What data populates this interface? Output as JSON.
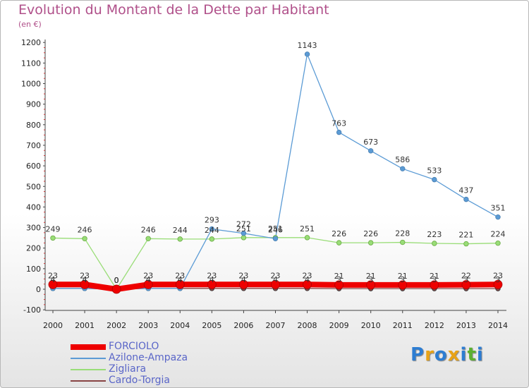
{
  "title": "Evolution du Montant de la Dette par Habitant",
  "subtitle": "(en €)",
  "logo": {
    "letters": [
      "P",
      "r",
      "o",
      "x",
      "i",
      "t",
      "i"
    ],
    "colors": [
      "#2d7dd2",
      "#e8a317",
      "#2d7dd2",
      "#e8a317",
      "#2d7dd2",
      "#5cb030",
      "#2d7dd2"
    ]
  },
  "chart_data": {
    "type": "line",
    "title": "Evolution du Montant de la Dette par Habitant",
    "ylabel": "(en €)",
    "xlabel": "",
    "categories": [
      "2000",
      "2001",
      "2002",
      "2003",
      "2004",
      "2005",
      "2006",
      "2007",
      "2008",
      "2009",
      "2010",
      "2011",
      "2012",
      "2013",
      "2014"
    ],
    "ylim": [
      -100,
      1200
    ],
    "yticks": [
      "-100",
      "0",
      "100",
      "200",
      "300",
      "400",
      "500",
      "600",
      "700",
      "800",
      "900",
      "1000",
      "1100",
      "1200"
    ],
    "grid": false,
    "legend_position": "bottom-left",
    "series": [
      {
        "name": "FORCIOLO",
        "color": "#ee0000",
        "values": [
          23,
          23,
          0,
          23,
          23,
          23,
          23,
          23,
          23,
          21,
          21,
          21,
          21,
          22,
          23
        ],
        "labels": [
          "23",
          "23",
          "0",
          "23",
          "23",
          "23",
          "23",
          "23",
          "23",
          "21",
          "21",
          "21",
          "21",
          "22",
          "23"
        ]
      },
      {
        "name": "Azilone-Ampaza",
        "color": "#5b9bd5",
        "values": [
          4,
          4,
          0,
          4,
          4,
          293,
          272,
          246,
          1143,
          763,
          673,
          586,
          533,
          437,
          351
        ],
        "labels": [
          "4",
          "4",
          "0",
          "4",
          "4",
          "293",
          "272",
          "246",
          "1143",
          "763",
          "673",
          "586",
          "533",
          "437",
          "351"
        ]
      },
      {
        "name": "Zigliara",
        "color": "#99dd77",
        "values": [
          249,
          246,
          0,
          246,
          244,
          244,
          251,
          251,
          251,
          226,
          226,
          228,
          223,
          221,
          224
        ],
        "labels": [
          "249",
          "246",
          "0",
          "246",
          "244",
          "244",
          "251",
          "251",
          "251",
          "226",
          "226",
          "228",
          "223",
          "221",
          "224"
        ]
      },
      {
        "name": "Cardo-Torgia",
        "color": "#884444",
        "values": [
          4,
          4,
          0,
          4,
          4,
          4,
          4,
          4,
          4,
          3,
          3,
          3,
          3,
          3,
          3
        ],
        "labels": [
          "4",
          "4",
          "0",
          "4",
          "4",
          "4",
          "4",
          "4",
          "4",
          "3",
          "3",
          "3",
          "3",
          "3",
          "3"
        ]
      }
    ]
  }
}
